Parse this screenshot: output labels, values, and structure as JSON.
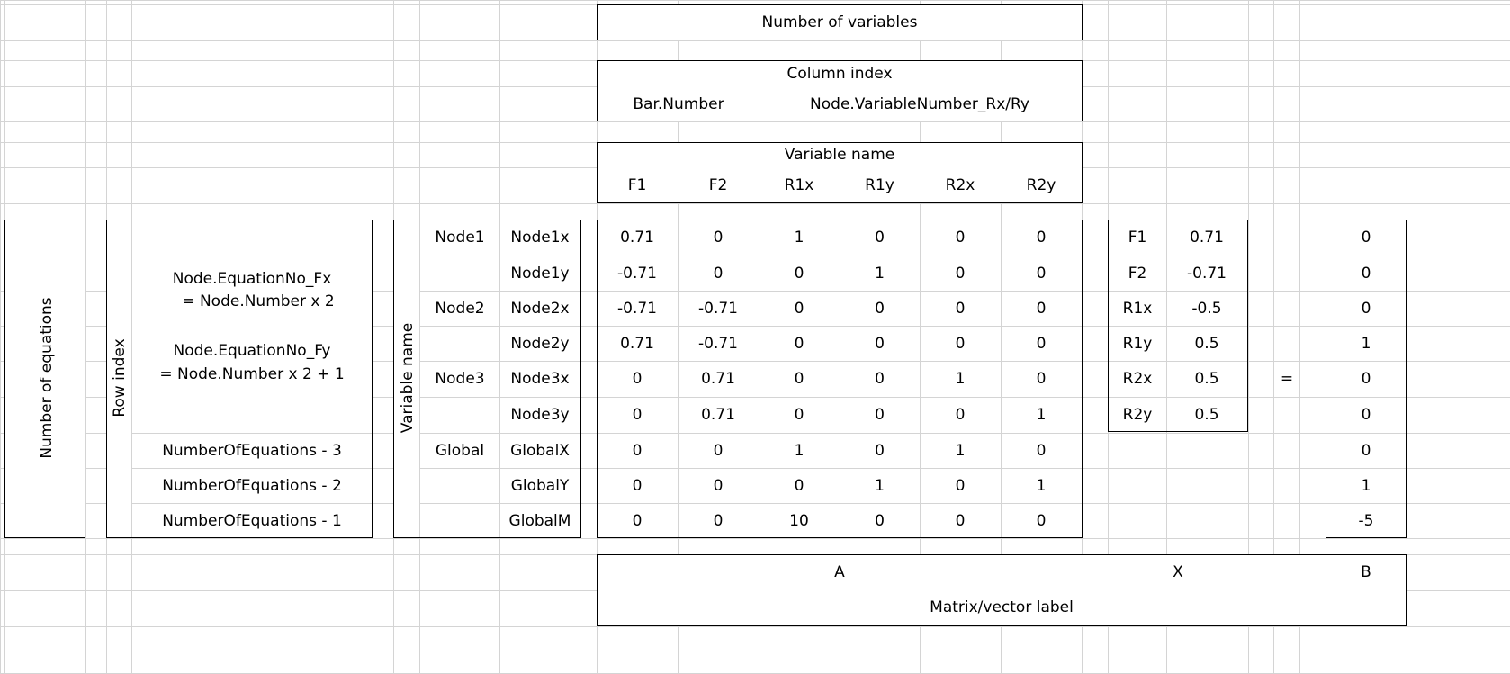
{
  "header": {
    "num_variables": "Number of variables",
    "column_index": "Column index",
    "bar_number": "Bar.Number",
    "node_var": "Node.VariableNumber_Rx/Ry",
    "variable_name": "Variable name",
    "var_cols": [
      "F1",
      "F2",
      "R1x",
      "R1y",
      "R2x",
      "R2y"
    ]
  },
  "left": {
    "num_equations": "Number of equations",
    "row_index": "Row index",
    "fx_line1": "Node.EquationNo_Fx",
    "fx_line2": "= Node.Number x 2",
    "fy_line1": "Node.EquationNo_Fy",
    "fy_line2": "= Node.Number x 2 + 1",
    "eq_minus": [
      "NumberOfEquations - 3",
      "NumberOfEquations - 2",
      "NumberOfEquations - 1"
    ],
    "variable_name": "Variable name",
    "groups": [
      "Node1",
      "",
      "Node2",
      "",
      "Node3",
      "",
      "Global",
      "",
      ""
    ],
    "rows": [
      "Node1x",
      "Node1y",
      "Node2x",
      "Node2y",
      "Node3x",
      "Node3y",
      "GlobalX",
      "GlobalY",
      "GlobalM"
    ]
  },
  "matrix_a": [
    [
      "0.71",
      "0",
      "1",
      "0",
      "0",
      "0"
    ],
    [
      "-0.71",
      "0",
      "0",
      "1",
      "0",
      "0"
    ],
    [
      "-0.71",
      "-0.71",
      "0",
      "0",
      "0",
      "0"
    ],
    [
      "0.71",
      "-0.71",
      "0",
      "0",
      "0",
      "0"
    ],
    [
      "0",
      "0.71",
      "0",
      "0",
      "1",
      "0"
    ],
    [
      "0",
      "0.71",
      "0",
      "0",
      "0",
      "1"
    ],
    [
      "0",
      "0",
      "1",
      "0",
      "1",
      "0"
    ],
    [
      "0",
      "0",
      "0",
      "1",
      "0",
      "1"
    ],
    [
      "0",
      "0",
      "10",
      "0",
      "0",
      "0"
    ]
  ],
  "vector_x": {
    "names": [
      "F1",
      "F2",
      "R1x",
      "R1y",
      "R2x",
      "R2y"
    ],
    "values": [
      "0.71",
      "-0.71",
      "-0.5",
      "0.5",
      "0.5",
      "0.5"
    ]
  },
  "equals": "=",
  "vector_b": [
    "0",
    "0",
    "0",
    "1",
    "0",
    "0",
    "0",
    "1",
    "-5"
  ],
  "footer": {
    "a": "A",
    "x": "X",
    "b": "B",
    "label": "Matrix/vector label"
  }
}
